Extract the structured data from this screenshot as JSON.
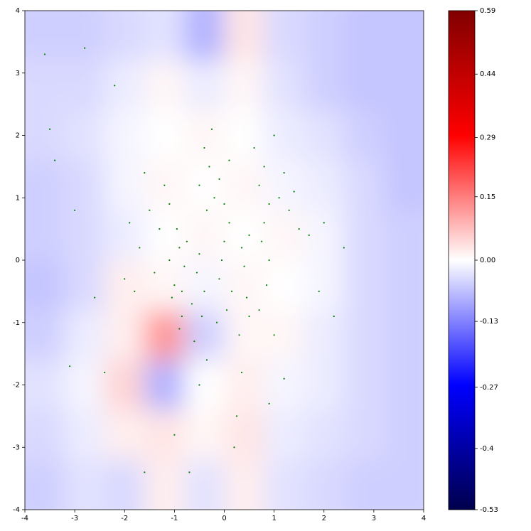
{
  "chart_data": {
    "type": "heatmap-scatter",
    "xlim": [
      -4,
      4
    ],
    "ylim": [
      -4,
      4
    ],
    "xticks": [
      -4,
      -3,
      -2,
      -1,
      0,
      1,
      2,
      3,
      4
    ],
    "yticks": [
      -4,
      -3,
      -2,
      -1,
      0,
      1,
      2,
      3,
      4
    ],
    "colormap": "seismic",
    "z": [
      [
        -0.05,
        -0.05,
        -0.04,
        -0.03,
        -0.08,
        0.03,
        -0.04,
        -0.05,
        -0.06,
        -0.06
      ],
      [
        -0.04,
        -0.04,
        -0.02,
        0.01,
        -0.02,
        0.01,
        -0.03,
        -0.05,
        -0.06,
        -0.06
      ],
      [
        -0.04,
        -0.03,
        -0.01,
        0.0,
        0.01,
        0.0,
        -0.02,
        -0.03,
        -0.05,
        -0.06
      ],
      [
        -0.05,
        -0.04,
        -0.01,
        0.01,
        0.0,
        0.01,
        -0.01,
        -0.02,
        -0.04,
        -0.06
      ],
      [
        -0.05,
        -0.04,
        -0.02,
        0.0,
        0.01,
        0.0,
        0.01,
        -0.01,
        -0.04,
        -0.05
      ],
      [
        -0.06,
        -0.04,
        0.02,
        0.01,
        -0.01,
        0.01,
        0.0,
        -0.01,
        -0.04,
        -0.05
      ],
      [
        -0.05,
        -0.02,
        0.02,
        0.12,
        -0.05,
        0.01,
        0.01,
        -0.02,
        -0.04,
        -0.05
      ],
      [
        -0.03,
        -0.01,
        0.05,
        -0.08,
        0.0,
        0.02,
        -0.01,
        -0.02,
        -0.04,
        -0.05
      ],
      [
        -0.04,
        -0.02,
        0.02,
        0.03,
        0.01,
        0.03,
        -0.02,
        -0.03,
        -0.04,
        -0.05
      ],
      [
        -0.05,
        -0.03,
        -0.04,
        0.02,
        -0.03,
        0.02,
        -0.03,
        -0.04,
        -0.05,
        -0.05
      ]
    ],
    "point_color": "#008000",
    "x": [
      -0.9,
      -1.0,
      -0.85,
      -0.95,
      -0.8,
      -1.05,
      -0.9,
      -0.75,
      -1.1,
      -0.85,
      -0.55,
      -0.45,
      -0.6,
      -0.5,
      -0.4,
      -0.65,
      -0.35,
      -0.5,
      0.0,
      -0.1,
      0.05,
      0.1,
      -0.05,
      0.15,
      -0.15,
      0.0,
      0.35,
      0.45,
      0.3,
      0.5,
      0.4,
      0.35,
      0.25,
      0.5,
      0.75,
      0.85,
      0.8,
      0.9,
      0.7,
      1.0,
      -0.3,
      -0.2,
      -0.4,
      -0.25,
      -0.1,
      -0.5,
      0.1,
      -0.35,
      0.8,
      1.1,
      1.3,
      0.6,
      1.0,
      1.5,
      1.2,
      0.9,
      1.7,
      0.7,
      1.4,
      2.0,
      -1.5,
      -1.7,
      -1.3,
      -1.8,
      -1.4,
      -1.9,
      -1.2,
      -2.0,
      -1.6,
      -1.1,
      -3.6,
      -2.8,
      -3.5,
      -3.4,
      -2.2,
      -3.0,
      -3.1,
      -2.4,
      1.9,
      2.4,
      0.9,
      -1.0,
      -0.7,
      0.2,
      -1.6,
      1.2,
      -2.6,
      2.2
    ],
    "y": [
      0.2,
      -0.4,
      -0.9,
      0.5,
      -0.1,
      -0.6,
      -1.1,
      0.3,
      0.0,
      -0.5,
      -0.2,
      -0.9,
      -1.3,
      0.1,
      -0.5,
      -0.7,
      -1.6,
      -2.0,
      0.3,
      -0.3,
      -0.8,
      0.6,
      0.0,
      -0.5,
      -1.0,
      0.9,
      0.2,
      -0.6,
      -1.2,
      0.4,
      -0.1,
      -1.8,
      -2.5,
      -0.9,
      0.3,
      -0.4,
      0.6,
      0.0,
      -0.8,
      -1.2,
      1.5,
      1.0,
      1.8,
      2.1,
      1.3,
      1.2,
      1.6,
      0.8,
      1.5,
      1.0,
      0.8,
      1.8,
      2.0,
      0.5,
      1.4,
      0.9,
      0.4,
      1.2,
      1.1,
      0.6,
      0.8,
      0.2,
      0.5,
      -0.5,
      -0.2,
      0.6,
      1.2,
      -0.3,
      1.4,
      0.9,
      3.3,
      3.4,
      2.1,
      1.6,
      2.8,
      0.8,
      -1.7,
      -1.8,
      -0.5,
      0.2,
      -2.3,
      -2.8,
      -3.4,
      -3.0,
      -3.4,
      -1.9,
      -0.6,
      -0.9
    ],
    "colorbar": {
      "clim": [
        -0.53,
        0.59
      ],
      "vcenter": 0,
      "ticks": [
        0.59,
        0.44,
        0.29,
        0.15,
        {
          "value": 0,
          "label": "0.00"
        },
        -0.13,
        -0.27,
        -0.4,
        -0.53
      ]
    }
  }
}
